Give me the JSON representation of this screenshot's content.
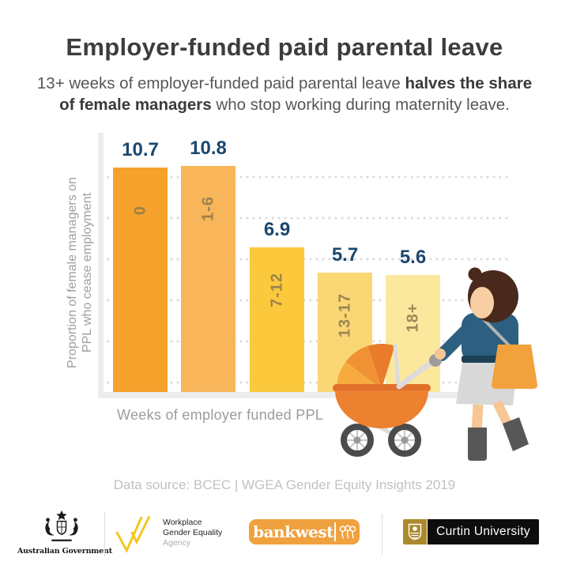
{
  "header": {
    "title": "Employer-funded paid parental leave",
    "subtitle_pre": "13+ weeks of employer-funded paid parental leave ",
    "subtitle_bold": "halves the share of female managers",
    "subtitle_post": " who stop working during maternity leave."
  },
  "chart_data": {
    "type": "bar",
    "categories": [
      "0",
      "1-6",
      "7-12",
      "13-17",
      "18+"
    ],
    "values": [
      10.7,
      10.8,
      6.9,
      5.7,
      5.6
    ],
    "bar_colors": [
      "#f6a12b",
      "#f8b559",
      "#fcc83c",
      "#fbd674",
      "#fce89d"
    ],
    "xlabel": "Weeks of employer funded PPL",
    "ylabel": "Proportion of female managers on PPL who cease employment",
    "ylim": [
      0,
      11.2
    ],
    "grid": "horizontal dotted lines",
    "legend": "none",
    "value_label_color": "#1a476e",
    "category_label_color": "#8c7a4e"
  },
  "illustration": {
    "description": "Woman pushing an orange pram (baby carriage)"
  },
  "source": "Data source: BCEC | WGEA Gender Equity Insights 2019",
  "footer": {
    "australian_government": "Australian Government",
    "wgea": {
      "line1": "Workplace",
      "line2": "Gender Equality",
      "line3": "Agency"
    },
    "bankwest": "bankwest",
    "curtin": "Curtin University"
  },
  "colors": {
    "accent_orange": "#f6a12b",
    "value_navy": "#1a476e",
    "axis_gray": "#ececec",
    "text_gray": "#9b9b9b",
    "source_gray": "#c2c2c2",
    "wgea_yellow": "#f2c51d",
    "bankwest_orange": "#efa13e",
    "curtin_gold": "#ab8a2e"
  }
}
